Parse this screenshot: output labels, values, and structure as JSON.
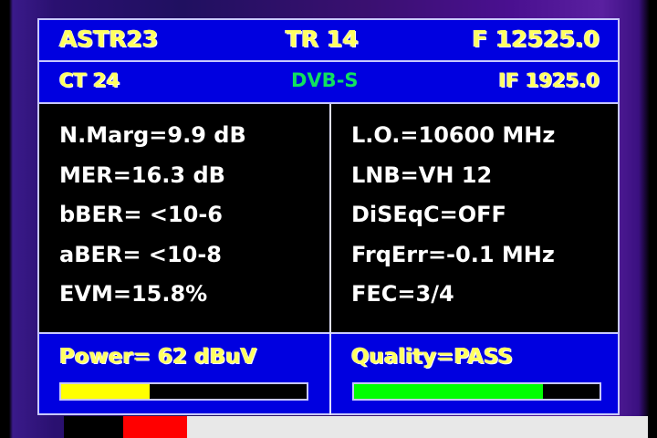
{
  "header": {
    "satellite": "ASTR23",
    "transponder": "TR 14",
    "frequency": "F 12525.0",
    "channel": "CT 24",
    "standard": "DVB-S",
    "if_freq": "IF 1925.0"
  },
  "left": [
    "N.Marg=9.9 dB",
    "MER=16.3 dB",
    "bBER= <10-6",
    "aBER= <10-8",
    "EVM=15.8%"
  ],
  "right": [
    "L.O.=10600 MHz",
    "LNB=VH 12",
    "DiSEqC=OFF",
    "FrqErr=-0.1 MHz",
    "FEC=3/4"
  ],
  "power": {
    "label": "Power=  62 dBuV",
    "level_percent": 36,
    "color": "#ffff00"
  },
  "quality": {
    "label": "Quality=PASS",
    "level_percent": 77,
    "color": "#00ff00"
  }
}
